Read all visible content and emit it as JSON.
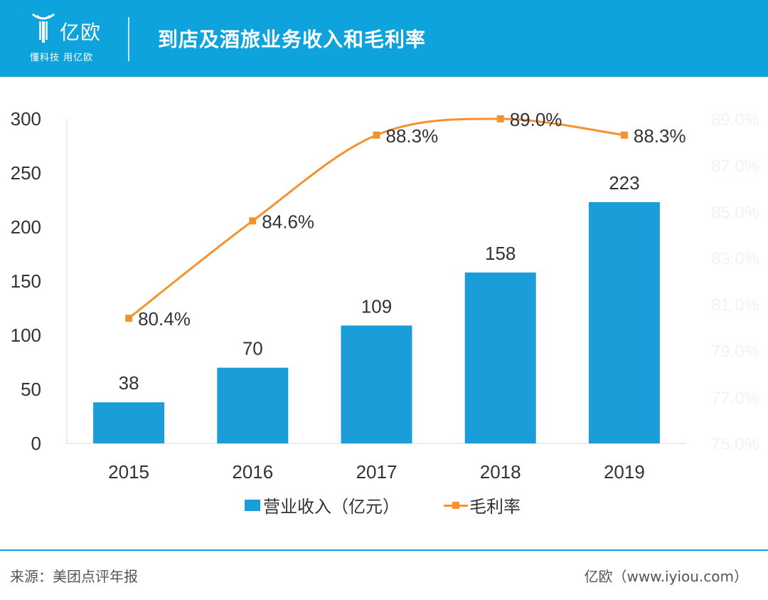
{
  "header": {
    "brand_name": "亿欧",
    "brand_slogan": "懂科技 用亿欧",
    "title": "到店及酒旅业务收入和毛利率"
  },
  "colors": {
    "header_bg": "#0ea3dd",
    "bar": "#1b9dd9",
    "line": "#f5922f",
    "axis_text": "#333333",
    "right_axis_text": "#f2f2f2"
  },
  "chart_data": {
    "type": "bar",
    "categories": [
      "2015",
      "2016",
      "2017",
      "2018",
      "2019"
    ],
    "series": [
      {
        "name": "营业收入（亿元）",
        "type": "bar",
        "axis": "left",
        "values": [
          38,
          70,
          109,
          158,
          223
        ],
        "labels": [
          "38",
          "70",
          "109",
          "158",
          "223"
        ]
      },
      {
        "name": "毛利率",
        "type": "line",
        "axis": "right",
        "values": [
          80.4,
          84.6,
          88.3,
          89.0,
          88.3
        ],
        "labels": [
          "80.4%",
          "84.6%",
          "88.3%",
          "89.0%",
          "88.3%"
        ]
      }
    ],
    "y_left": {
      "ylim": [
        0,
        300
      ],
      "ticks": [
        0,
        50,
        100,
        150,
        200,
        250,
        300
      ],
      "tick_labels": [
        "0",
        "50",
        "100",
        "150",
        "200",
        "250",
        "300"
      ]
    },
    "y_right": {
      "ylim": [
        75.0,
        89.0
      ],
      "ticks": [
        75.0,
        77.0,
        79.0,
        81.0,
        83.0,
        85.0,
        87.0,
        89.0
      ],
      "tick_labels": [
        "75.0%",
        "77.0%",
        "79.0%",
        "81.0%",
        "83.0%",
        "85.0%",
        "87.0%",
        "89.0%"
      ]
    },
    "grid": false,
    "legend_position": "bottom"
  },
  "footer": {
    "source": "来源：美团点评年报",
    "credit": "亿欧（www.iyiou.com）"
  }
}
